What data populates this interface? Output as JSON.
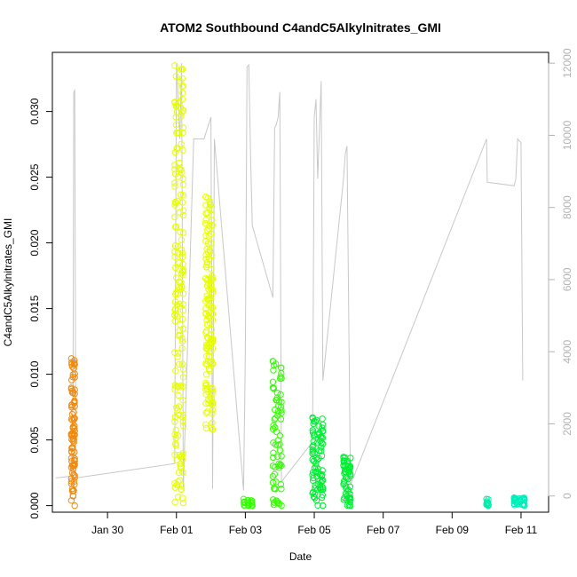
{
  "chart_data": {
    "type": "scatter",
    "title": "ATOM2 Southbound C4andC5Alkylnitrates_GMI",
    "xlabel": "Date",
    "ylabel": "C4andC5Alkylnitrates_GMI",
    "x_unit": "days since Jan 28",
    "xlim": [
      0.4,
      14.8
    ],
    "ylim": [
      -0.0005,
      0.0345
    ],
    "y2lim": [
      -450,
      12300
    ],
    "x_ticks": [
      {
        "value": 2,
        "label": "Jan 30"
      },
      {
        "value": 4,
        "label": "Feb 01"
      },
      {
        "value": 6,
        "label": "Feb 03"
      },
      {
        "value": 8,
        "label": "Feb 05"
      },
      {
        "value": 10,
        "label": "Feb 07"
      },
      {
        "value": 12,
        "label": "Feb 09"
      },
      {
        "value": 14,
        "label": "Feb 11"
      }
    ],
    "y_ticks": [
      {
        "value": 0.0,
        "label": "0.000"
      },
      {
        "value": 0.005,
        "label": "0.005"
      },
      {
        "value": 0.01,
        "label": "0.010"
      },
      {
        "value": 0.015,
        "label": "0.015"
      },
      {
        "value": 0.02,
        "label": "0.020"
      },
      {
        "value": 0.025,
        "label": "0.025"
      },
      {
        "value": 0.03,
        "label": "0.030"
      }
    ],
    "y2_ticks": [
      {
        "value": 0,
        "label": "0"
      },
      {
        "value": 2000,
        "label": "2000"
      },
      {
        "value": 4000,
        "label": "4000"
      },
      {
        "value": 6000,
        "label": "6000"
      },
      {
        "value": 8000,
        "label": "8000"
      },
      {
        "value": 10000,
        "label": "10000"
      },
      {
        "value": 12000,
        "label": "12000"
      }
    ],
    "grid": false,
    "legend": "none",
    "point_series": [
      {
        "color": "#f28a0c",
        "x_start": 0.95,
        "x_end": 1.05,
        "y_min": 0.0,
        "y_max": 0.0112,
        "n": 90
      },
      {
        "color": "#e6ff00",
        "x_start": 3.95,
        "x_end": 4.2,
        "y_min": 0.0002,
        "y_max": 0.0335,
        "n": 170
      },
      {
        "color": "#e6ff00",
        "x_start": 4.85,
        "x_end": 5.05,
        "y_min": 0.0058,
        "y_max": 0.0235,
        "n": 140
      },
      {
        "color": "#33ff00",
        "x_start": 5.95,
        "x_end": 6.2,
        "y_min": 0.0,
        "y_max": 0.0005,
        "n": 20
      },
      {
        "color": "#33ff00",
        "x_start": 6.8,
        "x_end": 7.05,
        "y_min": 0.0,
        "y_max": 0.011,
        "n": 70
      },
      {
        "color": "#00ee33",
        "x_start": 7.95,
        "x_end": 8.25,
        "y_min": 0.0,
        "y_max": 0.0067,
        "n": 80
      },
      {
        "color": "#00ee33",
        "x_start": 8.85,
        "x_end": 9.05,
        "y_min": 0.0,
        "y_max": 0.0037,
        "n": 50
      },
      {
        "color": "#00eeaa",
        "x_start": 13.0,
        "x_end": 13.05,
        "y_min": 0.0,
        "y_max": 0.0005,
        "n": 12
      },
      {
        "color": "#00eebb",
        "x_start": 13.8,
        "x_end": 14.1,
        "y_min": 0.0,
        "y_max": 0.0006,
        "n": 30
      }
    ],
    "altitude_line": {
      "color": "#c8c8c8",
      "axis": "right",
      "points": [
        [
          0.5,
          500
        ],
        [
          0.95,
          550
        ],
        [
          1.0,
          3000
        ],
        [
          1.02,
          11200
        ],
        [
          1.05,
          11250
        ],
        [
          1.08,
          500
        ],
        [
          3.95,
          900
        ],
        [
          4.0,
          12000
        ],
        [
          4.05,
          11000
        ],
        [
          4.1,
          9900
        ],
        [
          4.15,
          12000
        ],
        [
          4.2,
          200
        ],
        [
          4.5,
          9900
        ],
        [
          4.8,
          9900
        ],
        [
          4.9,
          10200
        ],
        [
          5.0,
          10500
        ],
        [
          5.05,
          200
        ],
        [
          5.1,
          9900
        ],
        [
          5.95,
          150
        ],
        [
          6.0,
          4000
        ],
        [
          6.05,
          11900
        ],
        [
          6.1,
          11950
        ],
        [
          6.15,
          9500
        ],
        [
          6.2,
          7500
        ],
        [
          6.8,
          5500
        ],
        [
          6.85,
          10200
        ],
        [
          6.9,
          10300
        ],
        [
          6.95,
          10500
        ],
        [
          7.0,
          11200
        ],
        [
          7.05,
          400
        ],
        [
          7.95,
          1500
        ],
        [
          8.0,
          10500
        ],
        [
          8.05,
          11000
        ],
        [
          8.1,
          8800
        ],
        [
          8.2,
          11500
        ],
        [
          8.25,
          3200
        ],
        [
          8.85,
          8800
        ],
        [
          8.9,
          9500
        ],
        [
          8.95,
          9700
        ],
        [
          9.05,
          300
        ],
        [
          13.0,
          9900
        ],
        [
          13.02,
          8700
        ],
        [
          13.8,
          8600
        ],
        [
          13.85,
          8800
        ],
        [
          13.9,
          9900
        ],
        [
          14.0,
          9800
        ],
        [
          14.05,
          3200
        ]
      ]
    }
  }
}
